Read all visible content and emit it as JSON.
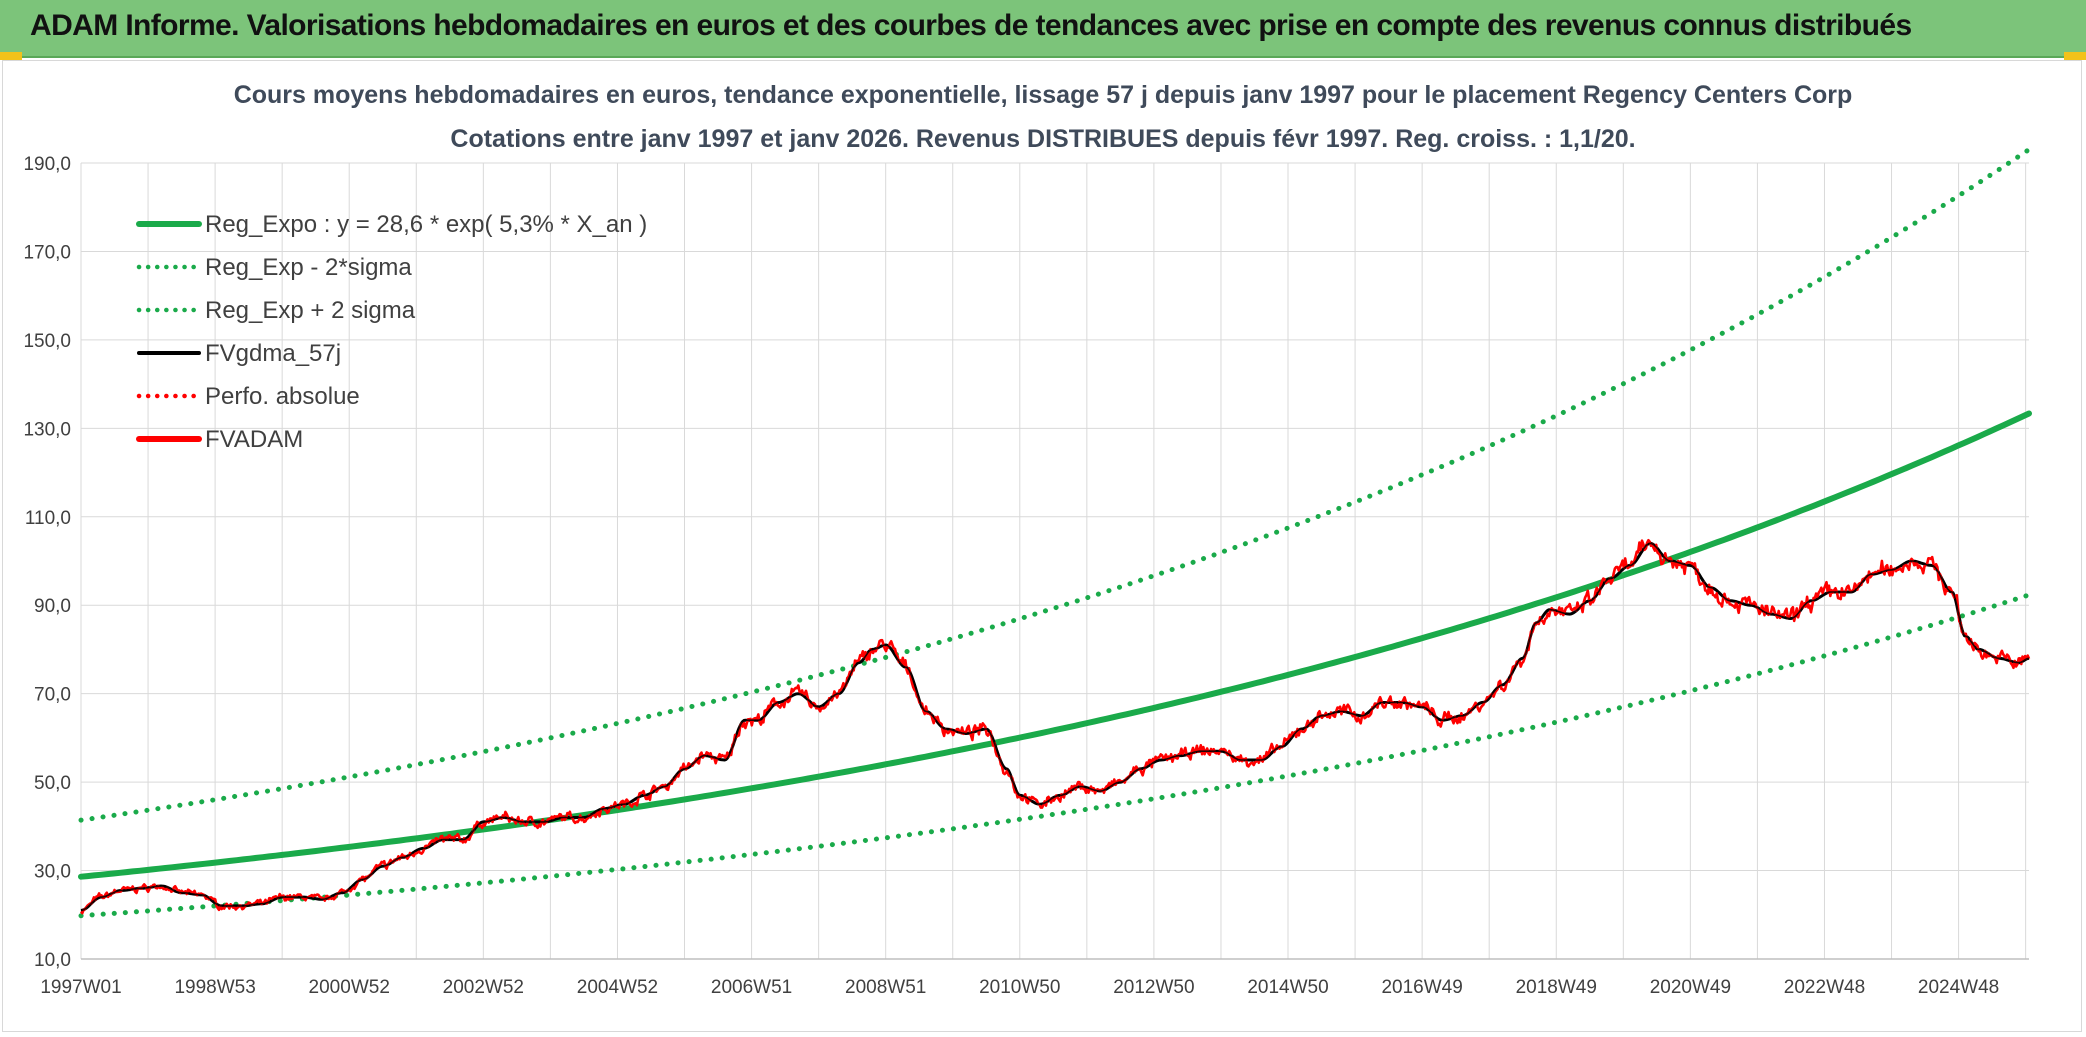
{
  "banner": {
    "title": "ADAM Informe. Valorisations hebdomadaires en euros et des courbes de tendances avec prise en compte des revenus connus distribués"
  },
  "colors": {
    "banner_bg": "#7cc47a",
    "reg_green": "#1aaa4a",
    "black": "#000000",
    "red": "#ff0000",
    "grid": "#d9d9d9"
  },
  "chart_data": {
    "type": "line",
    "title": [
      "Cours moyens hebdomadaires en euros, tendance exponentielle, lissage 57 j depuis janv 1997 pour le placement Regency Centers Corp",
      "Cotations entre janv 1997 et janv 2026. Revenus DISTRIBUES depuis févr 1997. Reg. croiss. : 1,1/20."
    ],
    "xlabel": "",
    "ylabel": "",
    "ylim": [
      10,
      190
    ],
    "xlim": [
      1997.0,
      2026.05
    ],
    "y_ticks": [
      "190,0",
      "170,0",
      "150,0",
      "130,0",
      "110,0",
      "90,0",
      "70,0",
      "50,0",
      "30,0",
      "10,0"
    ],
    "x_ticks": [
      "1997W01",
      "1998W53",
      "2000W52",
      "2002W52",
      "2004W52",
      "2006W51",
      "2008W51",
      "2010W50",
      "2012W50",
      "2014W50",
      "2016W49",
      "2018W49",
      "2020W49",
      "2022W48",
      "2024W48"
    ],
    "legend_position": "top-left",
    "legend": [
      {
        "label": "Reg_Expo : y = 28,6 * exp( 5,3% *  X_an )",
        "color": "#1aaa4a",
        "style": "solid-thick"
      },
      {
        "label": "Reg_Exp - 2*sigma",
        "color": "#1aaa4a",
        "style": "dotted"
      },
      {
        "label": "Reg_Exp + 2 sigma",
        "color": "#1aaa4a",
        "style": "dotted"
      },
      {
        "label": "FVgdma_57j",
        "color": "#000000",
        "style": "solid"
      },
      {
        "label": "Perfo. absolue",
        "color": "#ff0000",
        "style": "dotted"
      },
      {
        "label": "FVADAM",
        "color": "#ff0000",
        "style": "solid-thick"
      }
    ],
    "series": [
      {
        "name": "Reg_Expo",
        "x": [
          1997.0,
          2026.05
        ],
        "formula": "28.6*exp(0.053*(x-1997))"
      },
      {
        "name": "Reg_Exp - 2*sigma",
        "x": [
          1997.0,
          2026.05
        ],
        "formula": "19.8*exp(0.053*(x-1997))"
      },
      {
        "name": "Reg_Exp + 2 sigma",
        "x": [
          1997.0,
          2026.05
        ],
        "formula": "41.4*exp(0.053*(x-1997))"
      },
      {
        "name": "FVADAM",
        "points": [
          [
            1997.0,
            21
          ],
          [
            1997.3,
            24
          ],
          [
            1997.6,
            25.5
          ],
          [
            1997.9,
            26
          ],
          [
            1998.2,
            26.5
          ],
          [
            1998.5,
            25
          ],
          [
            1998.8,
            24.5
          ],
          [
            1999.1,
            22
          ],
          [
            1999.4,
            22
          ],
          [
            1999.7,
            22.5
          ],
          [
            2000.0,
            24
          ],
          [
            2000.3,
            24
          ],
          [
            2000.6,
            23.5
          ],
          [
            2000.9,
            25
          ],
          [
            2001.2,
            28
          ],
          [
            2001.5,
            31
          ],
          [
            2001.8,
            33
          ],
          [
            2002.1,
            35
          ],
          [
            2002.4,
            37
          ],
          [
            2002.7,
            37
          ],
          [
            2003.0,
            41
          ],
          [
            2003.3,
            42
          ],
          [
            2003.6,
            41
          ],
          [
            2003.9,
            41
          ],
          [
            2004.2,
            42
          ],
          [
            2004.5,
            42
          ],
          [
            2004.8,
            44
          ],
          [
            2005.1,
            45
          ],
          [
            2005.4,
            47
          ],
          [
            2005.7,
            49
          ],
          [
            2006.0,
            53
          ],
          [
            2006.3,
            56
          ],
          [
            2006.6,
            55
          ],
          [
            2006.9,
            64
          ],
          [
            2007.1,
            64
          ],
          [
            2007.4,
            68
          ],
          [
            2007.7,
            70
          ],
          [
            2008.0,
            67
          ],
          [
            2008.3,
            70
          ],
          [
            2008.6,
            77
          ],
          [
            2008.8,
            80
          ],
          [
            2009.0,
            81
          ],
          [
            2009.3,
            76
          ],
          [
            2009.6,
            66
          ],
          [
            2009.9,
            62
          ],
          [
            2010.2,
            61
          ],
          [
            2010.5,
            62
          ],
          [
            2010.8,
            53
          ],
          [
            2011.0,
            47
          ],
          [
            2011.3,
            45
          ],
          [
            2011.6,
            47
          ],
          [
            2011.9,
            49
          ],
          [
            2012.2,
            48
          ],
          [
            2012.5,
            50
          ],
          [
            2012.8,
            53
          ],
          [
            2013.1,
            55
          ],
          [
            2013.4,
            56
          ],
          [
            2013.7,
            57
          ],
          [
            2014.0,
            57
          ],
          [
            2014.3,
            55
          ],
          [
            2014.6,
            55
          ],
          [
            2014.9,
            58
          ],
          [
            2015.2,
            62
          ],
          [
            2015.5,
            65
          ],
          [
            2015.8,
            66
          ],
          [
            2016.1,
            65
          ],
          [
            2016.4,
            68
          ],
          [
            2016.7,
            68
          ],
          [
            2017.0,
            67
          ],
          [
            2017.3,
            64
          ],
          [
            2017.6,
            65
          ],
          [
            2017.9,
            68
          ],
          [
            2018.2,
            72
          ],
          [
            2018.5,
            78
          ],
          [
            2018.7,
            86
          ],
          [
            2018.9,
            89
          ],
          [
            2019.2,
            88
          ],
          [
            2019.5,
            91
          ],
          [
            2019.8,
            96
          ],
          [
            2020.1,
            99
          ],
          [
            2020.4,
            104
          ],
          [
            2020.7,
            100
          ],
          [
            2021.0,
            99
          ],
          [
            2021.3,
            94
          ],
          [
            2021.6,
            91
          ],
          [
            2021.9,
            90
          ],
          [
            2022.2,
            88
          ],
          [
            2022.5,
            87
          ],
          [
            2022.8,
            91
          ],
          [
            2023.1,
            93
          ],
          [
            2023.4,
            93
          ],
          [
            2023.7,
            97
          ],
          [
            2024.0,
            98
          ],
          [
            2024.3,
            100
          ],
          [
            2024.6,
            99
          ],
          [
            2024.9,
            93
          ],
          [
            2025.1,
            83
          ],
          [
            2025.3,
            80
          ],
          [
            2025.6,
            78
          ],
          [
            2025.9,
            77
          ],
          [
            2026.05,
            78
          ]
        ]
      }
    ]
  }
}
